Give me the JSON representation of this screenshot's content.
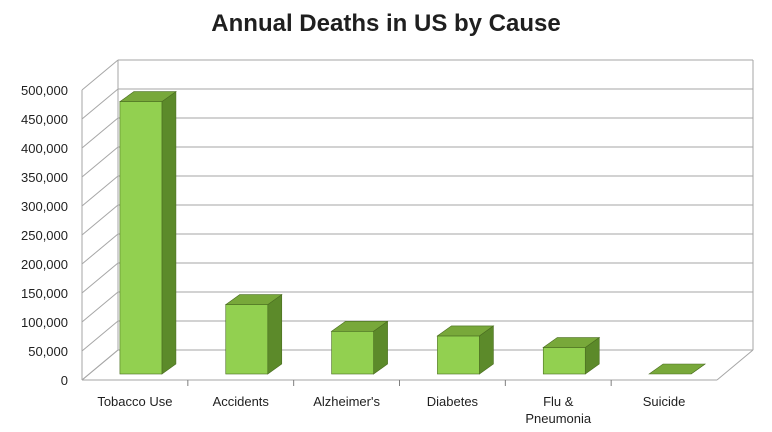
{
  "chart_data": {
    "type": "bar",
    "title": "Annual Deaths in US by Cause",
    "xlabel": "",
    "ylabel": "",
    "categories": [
      "Tobacco Use",
      "Accidents",
      "Alzheimer's",
      "Diabetes",
      "Flu & Pneumonia",
      "Suicide"
    ],
    "category_lines": [
      [
        "Tobacco Use"
      ],
      [
        "Accidents"
      ],
      [
        "Alzheimer's"
      ],
      [
        "Diabetes"
      ],
      [
        "Flu &",
        "Pneumonia"
      ],
      [
        "Suicide"
      ]
    ],
    "values": [
      480000,
      130000,
      84000,
      76000,
      56000,
      0
    ],
    "ylim": [
      0,
      500000
    ],
    "yticks": [
      0,
      50000,
      100000,
      150000,
      200000,
      250000,
      300000,
      350000,
      400000,
      450000,
      500000
    ],
    "ytick_labels": [
      "0",
      "50,000",
      "100,000",
      "150,000",
      "200,000",
      "250,000",
      "300,000",
      "350,000",
      "400,000",
      "450,000",
      "500,000"
    ],
    "grid": true,
    "style": "3d-column",
    "colors": {
      "bar_front": "#92d050",
      "bar_top": "#78a83a",
      "bar_side": "#5c8a2a",
      "bar_edge": "#4a6d20",
      "grid": "#a6a6a6",
      "axis": "#7f7f7f"
    }
  }
}
